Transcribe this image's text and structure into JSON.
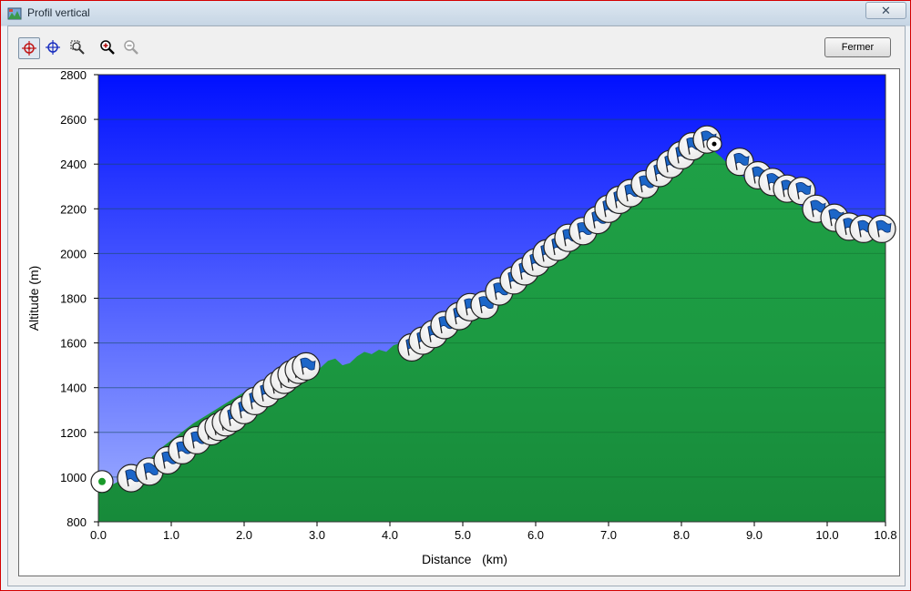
{
  "window": {
    "title": "Profil vertical",
    "close_glyph": "✕"
  },
  "toolbar": {
    "tools": [
      {
        "name": "crosshair-red-tool",
        "icon": "target-icon"
      },
      {
        "name": "crosshair-blue-tool",
        "icon": "crosshair-icon"
      },
      {
        "name": "zoom-box-tool",
        "icon": "zoom-box-icon"
      },
      {
        "name": "zoom-in-tool",
        "icon": "zoom-in-icon"
      },
      {
        "name": "zoom-out-tool",
        "icon": "zoom-out-icon"
      }
    ],
    "close_label": "Fermer"
  },
  "colors": {
    "sky_top": "#0010ff",
    "sky_bottom": "#a0b0ff",
    "terrain": "#1fa046",
    "terrain_dark": "#178a3a"
  },
  "chart_data": {
    "type": "area",
    "xlabel": "Distance   (km)",
    "ylabel": "Altitude (m)",
    "xlim": [
      0,
      10.8
    ],
    "ylim": [
      800,
      2800
    ],
    "xticks": [
      "0.0",
      "1.0",
      "2.0",
      "3.0",
      "4.0",
      "5.0",
      "6.0",
      "7.0",
      "8.0",
      "9.0",
      "10.0",
      "10.8"
    ],
    "yticks": [
      "800",
      "1000",
      "1200",
      "1400",
      "1600",
      "1800",
      "2000",
      "2200",
      "2400",
      "2600",
      "2800"
    ],
    "grid": true,
    "profile": {
      "x": [
        0.0,
        0.1,
        0.3,
        0.5,
        0.7,
        0.9,
        1.1,
        1.3,
        1.5,
        1.7,
        1.9,
        2.1,
        2.3,
        2.5,
        2.7,
        2.9,
        3.05,
        3.15,
        3.25,
        3.35,
        3.45,
        3.55,
        3.65,
        3.75,
        3.85,
        3.95,
        4.05,
        4.15,
        4.3,
        4.5,
        4.8,
        5.1,
        5.4,
        5.7,
        6.0,
        6.3,
        6.6,
        6.9,
        7.2,
        7.5,
        7.8,
        8.1,
        8.25,
        8.4,
        8.55,
        8.7,
        8.9,
        9.1,
        9.3,
        9.5,
        9.7,
        9.9,
        10.1,
        10.3,
        10.5,
        10.7,
        10.8
      ],
      "y": [
        940,
        950,
        985,
        1030,
        1080,
        1140,
        1190,
        1240,
        1280,
        1320,
        1360,
        1400,
        1440,
        1480,
        1510,
        1480,
        1490,
        1520,
        1530,
        1500,
        1510,
        1540,
        1560,
        1550,
        1570,
        1560,
        1590,
        1600,
        1620,
        1660,
        1720,
        1780,
        1840,
        1900,
        1960,
        2020,
        2090,
        2160,
        2230,
        2290,
        2350,
        2410,
        2440,
        2470,
        2430,
        2380,
        2330,
        2290,
        2260,
        2240,
        2200,
        2170,
        2140,
        2110,
        2090,
        2080,
        2050
      ]
    },
    "waypoints": {
      "start": {
        "x": 0.05,
        "y": 980
      },
      "flags": [
        {
          "x": 0.45,
          "y": 995
        },
        {
          "x": 0.7,
          "y": 1025
        },
        {
          "x": 0.95,
          "y": 1075
        },
        {
          "x": 1.15,
          "y": 1120
        },
        {
          "x": 1.35,
          "y": 1165
        },
        {
          "x": 1.55,
          "y": 1205
        },
        {
          "x": 1.65,
          "y": 1225
        },
        {
          "x": 1.75,
          "y": 1245
        },
        {
          "x": 1.85,
          "y": 1265
        },
        {
          "x": 2.0,
          "y": 1300
        },
        {
          "x": 2.15,
          "y": 1340
        },
        {
          "x": 2.3,
          "y": 1375
        },
        {
          "x": 2.45,
          "y": 1410
        },
        {
          "x": 2.55,
          "y": 1435
        },
        {
          "x": 2.65,
          "y": 1460
        },
        {
          "x": 2.75,
          "y": 1480
        },
        {
          "x": 2.85,
          "y": 1495
        },
        {
          "x": 4.3,
          "y": 1580
        },
        {
          "x": 4.45,
          "y": 1610
        },
        {
          "x": 4.6,
          "y": 1640
        },
        {
          "x": 4.75,
          "y": 1680
        },
        {
          "x": 4.95,
          "y": 1720
        },
        {
          "x": 5.1,
          "y": 1760
        },
        {
          "x": 5.3,
          "y": 1770
        },
        {
          "x": 5.5,
          "y": 1830
        },
        {
          "x": 5.7,
          "y": 1880
        },
        {
          "x": 5.85,
          "y": 1920
        },
        {
          "x": 6.0,
          "y": 1960
        },
        {
          "x": 6.15,
          "y": 2000
        },
        {
          "x": 6.3,
          "y": 2030
        },
        {
          "x": 6.45,
          "y": 2070
        },
        {
          "x": 6.65,
          "y": 2100
        },
        {
          "x": 6.85,
          "y": 2150
        },
        {
          "x": 7.0,
          "y": 2200
        },
        {
          "x": 7.15,
          "y": 2240
        },
        {
          "x": 7.3,
          "y": 2270
        },
        {
          "x": 7.5,
          "y": 2310
        },
        {
          "x": 7.7,
          "y": 2360
        },
        {
          "x": 7.85,
          "y": 2400
        },
        {
          "x": 8.0,
          "y": 2440
        },
        {
          "x": 8.15,
          "y": 2480
        },
        {
          "x": 8.35,
          "y": 2510
        },
        {
          "x": 8.8,
          "y": 2410
        },
        {
          "x": 9.05,
          "y": 2350
        },
        {
          "x": 9.25,
          "y": 2320
        },
        {
          "x": 9.45,
          "y": 2290
        },
        {
          "x": 9.65,
          "y": 2280
        },
        {
          "x": 9.85,
          "y": 2200
        },
        {
          "x": 10.1,
          "y": 2160
        },
        {
          "x": 10.3,
          "y": 2120
        },
        {
          "x": 10.5,
          "y": 2110
        },
        {
          "x": 10.75,
          "y": 2110
        }
      ],
      "end": {
        "x": 8.45,
        "y": 2490
      }
    }
  }
}
